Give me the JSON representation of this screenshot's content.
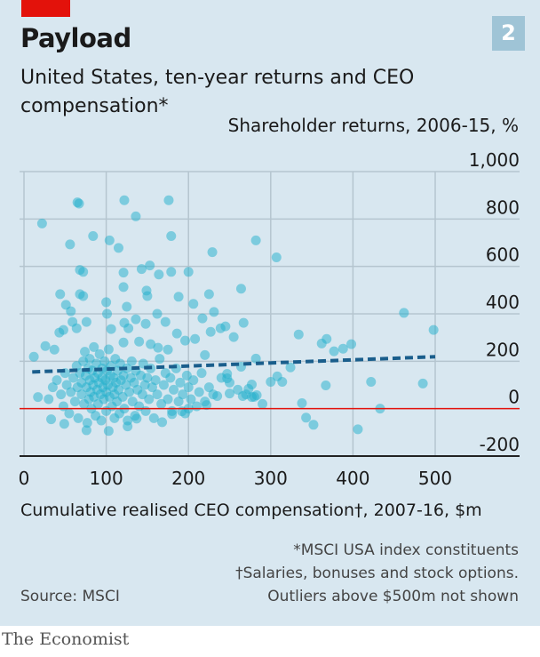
{
  "header": {
    "title": "Payload",
    "subtitle": "United States, ten-year returns and CEO compensation*",
    "badge": "2"
  },
  "footer": {
    "note1": "*MSCI USA index constituents",
    "note2": "†Salaries, bonuses and stock options.",
    "note3": "Outliers above $500m not shown",
    "source": "Source: MSCI",
    "brand": "The Economist"
  },
  "colors": {
    "background": "#d8e7f0",
    "dots": "#1fb0cc",
    "trend": "#1a5e8c",
    "zero_line": "#e3120b",
    "brand_red": "#e3120b"
  },
  "chart_data": {
    "type": "scatter",
    "title": "Payload",
    "xlabel": "Cumulative realised CEO compensation†, 2007-16, $m",
    "ylabel": "Shareholder returns, 2006-15, %",
    "xlim": [
      0,
      500
    ],
    "ylim": [
      -200,
      1000
    ],
    "xticks": [
      "0",
      "100",
      "200",
      "300",
      "400",
      "500"
    ],
    "yticks": [
      "1,000",
      "800",
      "600",
      "400",
      "200",
      "0",
      "-200"
    ],
    "xtick_values": [
      0,
      100,
      200,
      300,
      400,
      500
    ],
    "ytick_values": [
      1000,
      800,
      600,
      400,
      200,
      0,
      -200
    ],
    "grid": true,
    "trendline": {
      "x": [
        10,
        500
      ],
      "y": [
        155,
        219
      ]
    },
    "points": [
      [
        65,
        870
      ],
      [
        67,
        865
      ],
      [
        122,
        879
      ],
      [
        176,
        879
      ],
      [
        22,
        781
      ],
      [
        136,
        811
      ],
      [
        84,
        728
      ],
      [
        56,
        693
      ],
      [
        104,
        710
      ],
      [
        115,
        678
      ],
      [
        179,
        728
      ],
      [
        282,
        710
      ],
      [
        229,
        660
      ],
      [
        307,
        638
      ],
      [
        68,
        585
      ],
      [
        72,
        577
      ],
      [
        121,
        574
      ],
      [
        143,
        589
      ],
      [
        153,
        604
      ],
      [
        164,
        566
      ],
      [
        179,
        577
      ],
      [
        200,
        577
      ],
      [
        44,
        483
      ],
      [
        68,
        483
      ],
      [
        72,
        475
      ],
      [
        121,
        513
      ],
      [
        149,
        498
      ],
      [
        150,
        475
      ],
      [
        188,
        472
      ],
      [
        225,
        483
      ],
      [
        264,
        506
      ],
      [
        100,
        449
      ],
      [
        206,
        442
      ],
      [
        51,
        438
      ],
      [
        57,
        411
      ],
      [
        125,
        430
      ],
      [
        231,
        408
      ],
      [
        462,
        404
      ],
      [
        162,
        400
      ],
      [
        101,
        400
      ],
      [
        59,
        366
      ],
      [
        76,
        366
      ],
      [
        122,
        362
      ],
      [
        136,
        377
      ],
      [
        148,
        358
      ],
      [
        172,
        366
      ],
      [
        217,
        381
      ],
      [
        267,
        362
      ],
      [
        245,
        347
      ],
      [
        239,
        339
      ],
      [
        43,
        321
      ],
      [
        48,
        332
      ],
      [
        64,
        339
      ],
      [
        106,
        336
      ],
      [
        127,
        339
      ],
      [
        186,
        317
      ],
      [
        208,
        294
      ],
      [
        227,
        324
      ],
      [
        255,
        302
      ],
      [
        498,
        332
      ],
      [
        334,
        313
      ],
      [
        362,
        275
      ],
      [
        368,
        294
      ],
      [
        377,
        242
      ],
      [
        388,
        253
      ],
      [
        398,
        272
      ],
      [
        26,
        264
      ],
      [
        37,
        249
      ],
      [
        12,
        219
      ],
      [
        196,
        287
      ],
      [
        140,
        283
      ],
      [
        121,
        279
      ],
      [
        154,
        272
      ],
      [
        163,
        257
      ],
      [
        175,
        249
      ],
      [
        220,
        226
      ],
      [
        282,
        211
      ],
      [
        324,
        174
      ],
      [
        300,
        113
      ],
      [
        308,
        136
      ],
      [
        314,
        113
      ],
      [
        367,
        98
      ],
      [
        422,
        113
      ],
      [
        485,
        106
      ],
      [
        338,
        23
      ],
      [
        433,
        0
      ],
      [
        343,
        -38
      ],
      [
        352,
        -68
      ],
      [
        406,
        -87
      ],
      [
        264,
        177
      ],
      [
        247,
        147
      ],
      [
        247,
        128
      ],
      [
        277,
        102
      ],
      [
        273,
        83
      ],
      [
        266,
        53
      ],
      [
        283,
        57
      ],
      [
        277,
        49
      ],
      [
        235,
        53
      ],
      [
        250,
        64
      ],
      [
        222,
        15
      ],
      [
        200,
        0
      ],
      [
        192,
        -11
      ],
      [
        180,
        -23
      ],
      [
        168,
        -57
      ],
      [
        103,
        -94
      ],
      [
        76,
        -91
      ],
      [
        126,
        -75
      ],
      [
        137,
        -42
      ],
      [
        49,
        -64
      ],
      [
        33,
        -45
      ],
      [
        17,
        49
      ],
      [
        30,
        40
      ],
      [
        35,
        90
      ],
      [
        40,
        120
      ],
      [
        45,
        60
      ],
      [
        48,
        10
      ],
      [
        50,
        150
      ],
      [
        52,
        100
      ],
      [
        55,
        -20
      ],
      [
        57,
        70
      ],
      [
        60,
        130
      ],
      [
        62,
        30
      ],
      [
        64,
        180
      ],
      [
        65,
        90
      ],
      [
        66,
        -40
      ],
      [
        68,
        150
      ],
      [
        70,
        110
      ],
      [
        70,
        60
      ],
      [
        72,
        200
      ],
      [
        73,
        20
      ],
      [
        74,
        240
      ],
      [
        75,
        140
      ],
      [
        76,
        90
      ],
      [
        77,
        -60
      ],
      [
        78,
        170
      ],
      [
        79,
        40
      ],
      [
        80,
        120
      ],
      [
        80,
        210
      ],
      [
        81,
        70
      ],
      [
        82,
        0
      ],
      [
        83,
        160
      ],
      [
        84,
        100
      ],
      [
        85,
        260
      ],
      [
        85,
        50
      ],
      [
        86,
        130
      ],
      [
        87,
        -30
      ],
      [
        88,
        190
      ],
      [
        89,
        80
      ],
      [
        90,
        150
      ],
      [
        90,
        20
      ],
      [
        91,
        110
      ],
      [
        92,
        230
      ],
      [
        93,
        60
      ],
      [
        94,
        -50
      ],
      [
        95,
        170
      ],
      [
        95,
        130
      ],
      [
        96,
        90
      ],
      [
        97,
        40
      ],
      [
        98,
        200
      ],
      [
        99,
        120
      ],
      [
        100,
        70
      ],
      [
        100,
        -10
      ],
      [
        101,
        160
      ],
      [
        102,
        100
      ],
      [
        103,
        250
      ],
      [
        104,
        50
      ],
      [
        105,
        140
      ],
      [
        106,
        180
      ],
      [
        107,
        10
      ],
      [
        108,
        90
      ],
      [
        109,
        130
      ],
      [
        110,
        -40
      ],
      [
        110,
        60
      ],
      [
        111,
        210
      ],
      [
        112,
        110
      ],
      [
        113,
        30
      ],
      [
        114,
        160
      ],
      [
        115,
        80
      ],
      [
        116,
        -20
      ],
      [
        117,
        190
      ],
      [
        118,
        120
      ],
      [
        120,
        50
      ],
      [
        121,
        140
      ],
      [
        122,
        0
      ],
      [
        124,
        100
      ],
      [
        125,
        170
      ],
      [
        126,
        -50
      ],
      [
        128,
        70
      ],
      [
        130,
        130
      ],
      [
        131,
        200
      ],
      [
        132,
        30
      ],
      [
        134,
        110
      ],
      [
        135,
        -30
      ],
      [
        136,
        160
      ],
      [
        138,
        80
      ],
      [
        140,
        10
      ],
      [
        142,
        140
      ],
      [
        144,
        60
      ],
      [
        145,
        190
      ],
      [
        147,
        100
      ],
      [
        148,
        -10
      ],
      [
        150,
        130
      ],
      [
        152,
        40
      ],
      [
        154,
        170
      ],
      [
        156,
        90
      ],
      [
        158,
        -40
      ],
      [
        160,
        120
      ],
      [
        162,
        60
      ],
      [
        165,
        210
      ],
      [
        167,
        20
      ],
      [
        170,
        100
      ],
      [
        172,
        150
      ],
      [
        175,
        40
      ],
      [
        178,
        130
      ],
      [
        180,
        -10
      ],
      [
        182,
        80
      ],
      [
        185,
        170
      ],
      [
        188,
        30
      ],
      [
        190,
        110
      ],
      [
        193,
        60
      ],
      [
        196,
        -20
      ],
      [
        198,
        140
      ],
      [
        200,
        90
      ],
      [
        203,
        40
      ],
      [
        206,
        120
      ],
      [
        210,
        10
      ],
      [
        213,
        70
      ],
      [
        216,
        150
      ],
      [
        220,
        30
      ],
      [
        225,
        90
      ],
      [
        230,
        60
      ],
      [
        240,
        130
      ],
      [
        250,
        110
      ],
      [
        260,
        80
      ],
      [
        270,
        60
      ],
      [
        280,
        50
      ],
      [
        290,
        20
      ]
    ]
  }
}
